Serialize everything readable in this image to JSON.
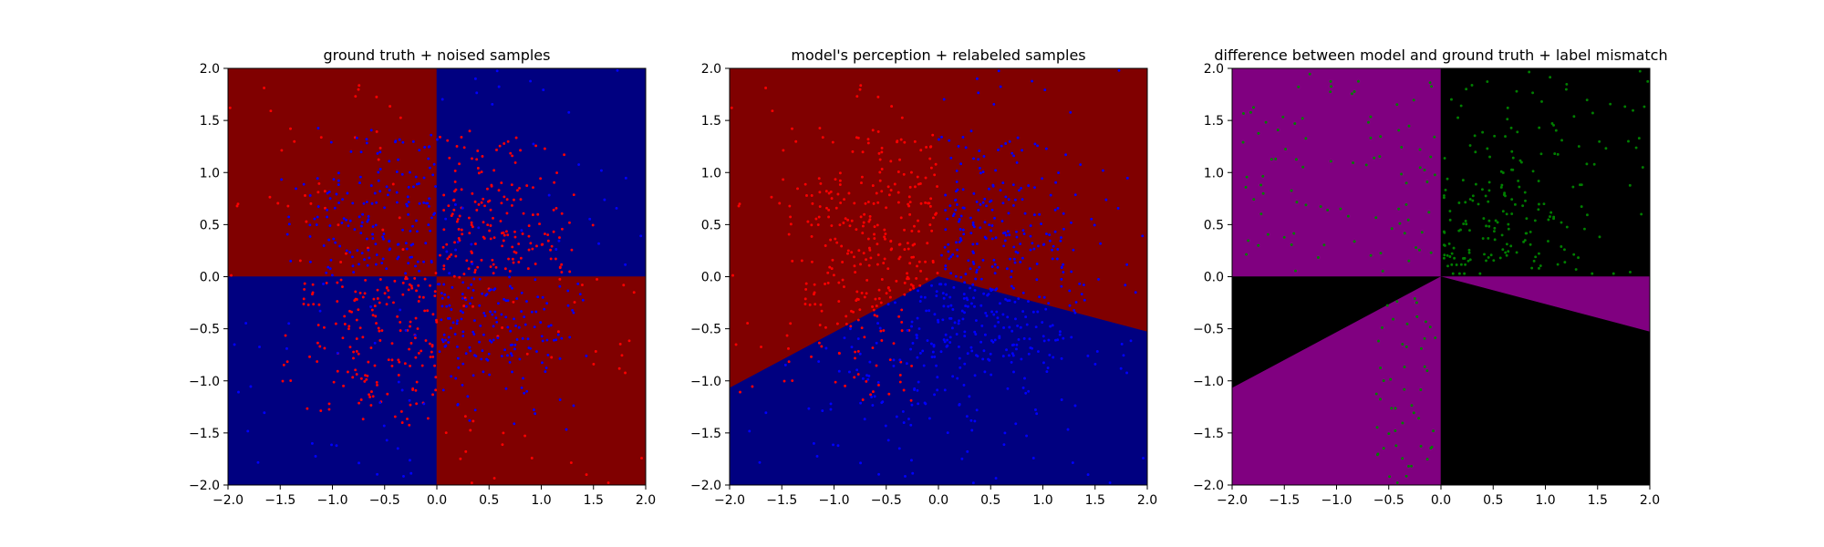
{
  "figure": {
    "background": "#ffffff"
  },
  "colors": {
    "region_red": "#800000",
    "region_blue": "#000080",
    "region_purple": "#800080",
    "region_black": "#000000",
    "point_red": "#ff0000",
    "point_blue": "#0000ff",
    "point_green": "#008000"
  },
  "chart_data": [
    {
      "type": "scatter",
      "title": "ground truth + noised samples",
      "xlabel": "",
      "ylabel": "",
      "xlim": [
        -2.0,
        2.0
      ],
      "ylim": [
        -2.0,
        2.0
      ],
      "xticks": [
        "−2.0",
        "−1.5",
        "−1.0",
        "−0.5",
        "0.0",
        "0.5",
        "1.0",
        "1.5",
        "2.0"
      ],
      "yticks": [
        "−2.0",
        "−1.5",
        "−1.0",
        "−0.5",
        "0.0",
        "0.5",
        "1.0",
        "1.5",
        "2.0"
      ],
      "grid": false,
      "background_regions": [
        {
          "label": "red",
          "color": "#800000",
          "polygon": [
            [
              -2,
              0
            ],
            [
              0,
              0
            ],
            [
              0,
              2
            ],
            [
              -2,
              2
            ]
          ]
        },
        {
          "label": "blue",
          "color": "#000080",
          "polygon": [
            [
              0,
              0
            ],
            [
              2,
              0
            ],
            [
              2,
              2
            ],
            [
              0,
              2
            ]
          ]
        },
        {
          "label": "blue",
          "color": "#000080",
          "polygon": [
            [
              -2,
              -2
            ],
            [
              0,
              -2
            ],
            [
              0,
              0
            ],
            [
              -2,
              0
            ]
          ]
        },
        {
          "label": "red",
          "color": "#800000",
          "polygon": [
            [
              0,
              -2
            ],
            [
              2,
              -2
            ],
            [
              2,
              0
            ],
            [
              0,
              0
            ]
          ]
        }
      ],
      "samples": {
        "approx_count": 1000,
        "marker_size": 2,
        "groups": [
          {
            "color": "#ff0000",
            "region": "x>0,y>0 (dense)",
            "approx_count": 180
          },
          {
            "color": "#ff0000",
            "region": "x<0,y<0 (dense)",
            "approx_count": 180
          },
          {
            "color": "#ff0000",
            "region": "x<0,y>0 (sparse)",
            "approx_count": 40
          },
          {
            "color": "#ff0000",
            "region": "x>0,y<0 (sparse)",
            "approx_count": 40
          },
          {
            "color": "#0000ff",
            "region": "x<0,y>0 (dense)",
            "approx_count": 180
          },
          {
            "color": "#0000ff",
            "region": "x>0,y<0 (dense)",
            "approx_count": 180
          },
          {
            "color": "#0000ff",
            "region": "x>0,y>0 (sparse)",
            "approx_count": 35
          },
          {
            "color": "#0000ff",
            "region": "x<0,y<0 (sparse)",
            "approx_count": 35
          }
        ]
      }
    },
    {
      "type": "scatter",
      "title": "model's perception + relabeled samples",
      "xlabel": "",
      "ylabel": "",
      "xlim": [
        -2.0,
        2.0
      ],
      "ylim": [
        -2.0,
        2.0
      ],
      "xticks": [
        "−2.0",
        "−1.5",
        "−1.0",
        "−0.5",
        "0.0",
        "0.5",
        "1.0",
        "1.5",
        "2.0"
      ],
      "yticks": [
        "−2.0",
        "−1.5",
        "−1.0",
        "−0.5",
        "0.0",
        "0.5",
        "1.0",
        "1.5",
        "2.0"
      ],
      "grid": false,
      "decision_boundary": [
        [
          -2.0,
          -1.07
        ],
        [
          0.0,
          0.0
        ],
        [
          2.0,
          -0.53
        ]
      ],
      "background_regions": [
        {
          "label": "red",
          "color": "#800000",
          "polygon": [
            [
              -2,
              -1.07
            ],
            [
              0,
              0
            ],
            [
              2,
              -0.53
            ],
            [
              2,
              2
            ],
            [
              -2,
              2
            ]
          ]
        },
        {
          "label": "blue",
          "color": "#000080",
          "polygon": [
            [
              -2,
              -2
            ],
            [
              2,
              -2
            ],
            [
              2,
              -0.53
            ],
            [
              0,
              0
            ],
            [
              -2,
              -1.07
            ]
          ]
        }
      ],
      "samples": {
        "approx_count": 1000,
        "marker_size": 2,
        "groups": [
          {
            "color": "#ff0000",
            "region": "above boundary, x<0 (dense)",
            "approx_count": 380
          },
          {
            "color": "#0000ff",
            "region": "below boundary (dense)",
            "approx_count": 400
          },
          {
            "color": "#0000ff",
            "region": "above boundary, x>0",
            "approx_count": 220
          }
        ]
      }
    },
    {
      "type": "scatter",
      "title": "difference between model and ground truth + label mismatch",
      "xlabel": "",
      "ylabel": "",
      "xlim": [
        -2.0,
        2.0
      ],
      "ylim": [
        -2.0,
        2.0
      ],
      "xticks": [
        "−2.0",
        "−1.5",
        "−1.0",
        "−0.5",
        "0.0",
        "0.5",
        "1.0",
        "1.5",
        "2.0"
      ],
      "yticks": [
        "−2.0",
        "−1.5",
        "−1.0",
        "−0.5",
        "0.0",
        "0.5",
        "1.0",
        "1.5",
        "2.0"
      ],
      "grid": false,
      "background_regions": [
        {
          "label": "mismatch",
          "color": "#800080",
          "polygon": [
            [
              -2,
              0
            ],
            [
              0,
              0
            ],
            [
              0,
              2
            ],
            [
              -2,
              2
            ]
          ]
        },
        {
          "label": "match",
          "color": "#000000",
          "polygon": [
            [
              0,
              0
            ],
            [
              2,
              0
            ],
            [
              2,
              2
            ],
            [
              0,
              2
            ]
          ]
        },
        {
          "label": "match",
          "color": "#000000",
          "polygon": [
            [
              -2,
              0
            ],
            [
              0,
              0
            ],
            [
              -2,
              -1.07
            ]
          ]
        },
        {
          "label": "mismatch",
          "color": "#800080",
          "polygon": [
            [
              -2,
              -1.07
            ],
            [
              0,
              0
            ],
            [
              0,
              -2
            ],
            [
              -2,
              -2
            ]
          ]
        },
        {
          "label": "mismatch",
          "color": "#800080",
          "polygon": [
            [
              0,
              0
            ],
            [
              2,
              0
            ],
            [
              2,
              -0.53
            ]
          ]
        },
        {
          "label": "match",
          "color": "#000000",
          "polygon": [
            [
              0,
              0
            ],
            [
              2,
              -0.53
            ],
            [
              2,
              -2
            ],
            [
              0,
              -2
            ]
          ]
        }
      ],
      "samples": {
        "approx_count": 330,
        "marker_size": 2,
        "color": "#008000",
        "groups": [
          {
            "color": "#008000",
            "region": "x<0,y>0",
            "approx_count": 90
          },
          {
            "color": "#008000",
            "region": "x>0,y>0",
            "approx_count": 200
          },
          {
            "color": "#008000",
            "region": "x in [-0.6,0], y<0",
            "approx_count": 50
          }
        ]
      }
    }
  ]
}
